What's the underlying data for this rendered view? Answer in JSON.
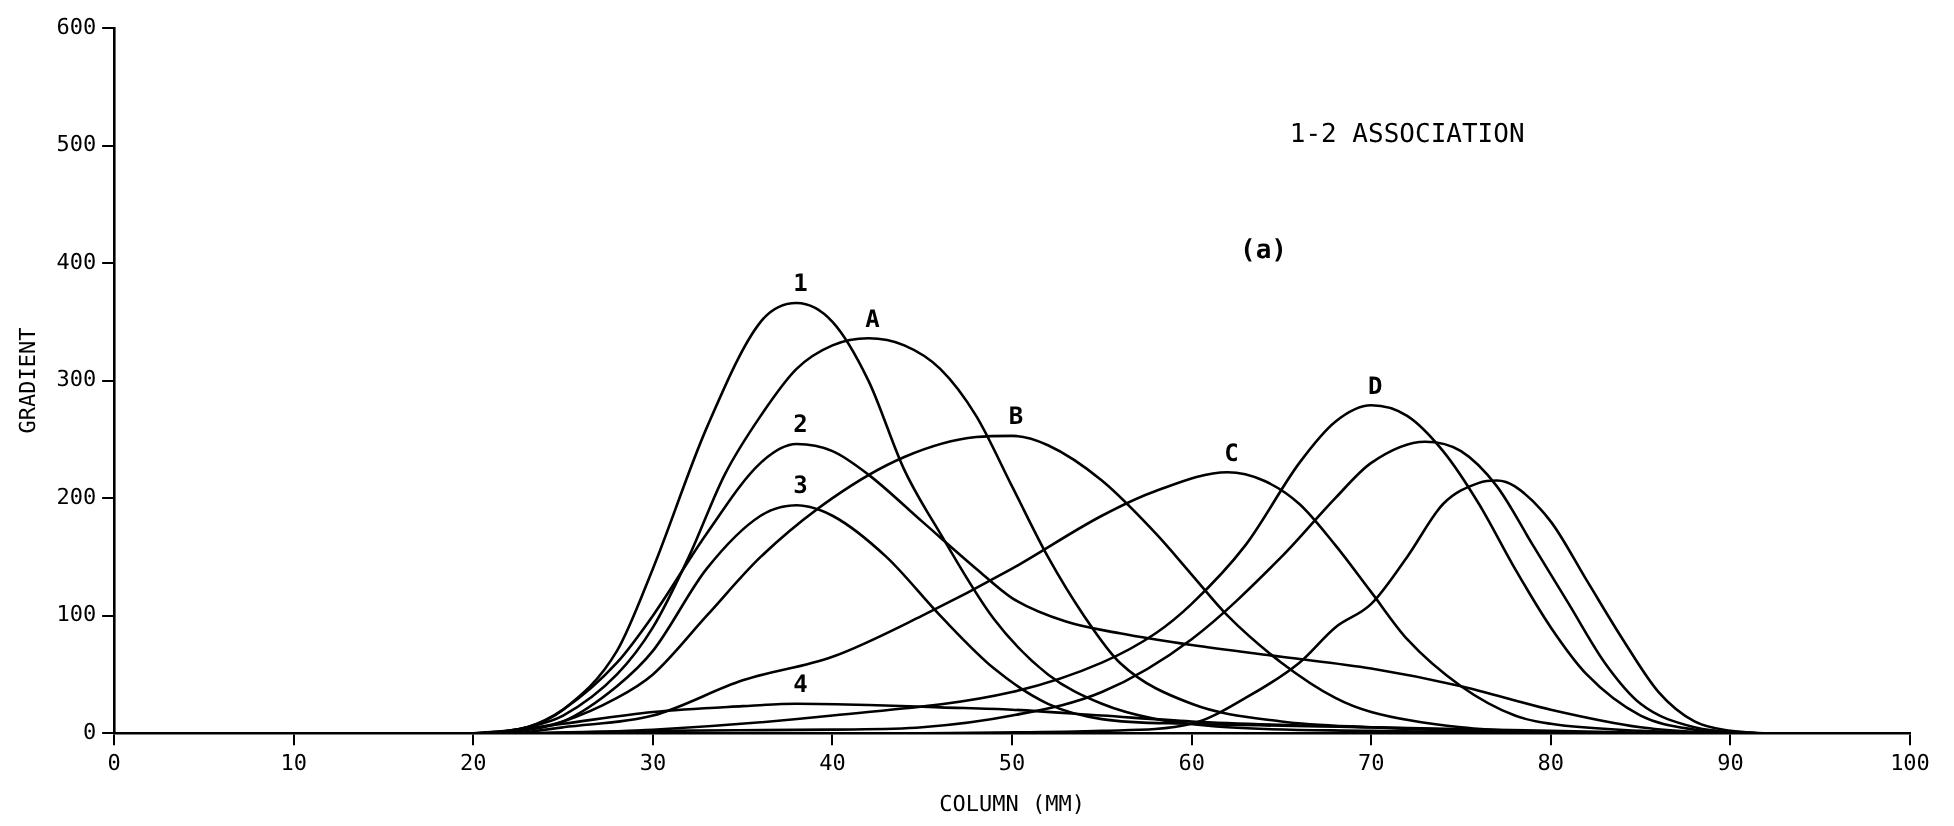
{
  "chart_data": {
    "type": "line",
    "title": "1-2 ASSOCIATION",
    "subtitle": "(a)",
    "xlabel": "COLUMN (MM)",
    "ylabel": "GRADIENT",
    "xlim": [
      0,
      100
    ],
    "xticks": [
      0,
      10,
      20,
      30,
      40,
      50,
      60,
      70,
      80,
      90,
      100
    ],
    "ylim": [
      0,
      600
    ],
    "yticks": [
      0,
      100,
      200,
      300,
      400,
      500,
      600
    ],
    "grid": false,
    "legend": false,
    "marker": "none",
    "line_style": "solid",
    "series": [
      {
        "name": "1",
        "color": "#000000",
        "x": [
          20,
          23,
          25,
          28,
          30,
          33,
          36,
          38,
          40,
          42,
          44,
          46,
          49,
          52,
          55,
          58,
          62,
          70,
          80
        ],
        "values": [
          0,
          5,
          20,
          70,
          140,
          260,
          350,
          366,
          350,
          300,
          224,
          170,
          97,
          50,
          25,
          12,
          5,
          2,
          0
        ]
      },
      {
        "name": "A",
        "color": "#000000",
        "x": [
          21,
          23,
          25,
          28,
          30,
          32,
          34,
          36,
          38,
          40,
          42,
          44,
          46,
          48,
          50,
          52,
          54,
          56,
          60,
          65,
          70,
          79
        ],
        "values": [
          0,
          5,
          15,
          50,
          90,
          150,
          220,
          270,
          310,
          330,
          336,
          330,
          310,
          270,
          210,
          150,
          100,
          60,
          25,
          10,
          5,
          0
        ]
      },
      {
        "name": "2",
        "color": "#000000",
        "x": [
          20.5,
          23,
          25,
          28,
          30,
          33,
          36,
          38,
          40,
          42,
          45,
          48,
          50,
          53,
          56,
          60,
          65,
          70,
          75,
          80,
          85,
          89
        ],
        "values": [
          0,
          5,
          20,
          60,
          100,
          170,
          230,
          246,
          240,
          220,
          180,
          140,
          115,
          95,
          85,
          75,
          65,
          55,
          40,
          20,
          5,
          0
        ]
      },
      {
        "name": "3",
        "color": "#000000",
        "x": [
          21.5,
          25,
          28,
          30,
          33,
          36,
          38,
          40,
          43,
          46,
          49,
          52,
          55,
          60,
          70,
          81
        ],
        "values": [
          0,
          10,
          40,
          70,
          140,
          185,
          194,
          185,
          150,
          100,
          55,
          25,
          12,
          8,
          5,
          0
        ]
      },
      {
        "name": "B",
        "color": "#000000",
        "x": [
          22,
          25,
          28,
          30,
          33,
          36,
          40,
          44,
          48,
          50,
          52,
          55,
          58,
          60,
          62,
          65,
          68,
          70,
          75,
          82
        ],
        "values": [
          0,
          10,
          30,
          50,
          100,
          150,
          200,
          235,
          252,
          253,
          245,
          215,
          170,
          135,
          100,
          60,
          30,
          18,
          5,
          0
        ]
      },
      {
        "name": "C",
        "color": "#000000",
        "x": [
          22.5,
          25,
          30,
          35,
          40,
          45,
          50,
          55,
          58,
          62,
          64,
          66,
          68,
          70,
          72,
          75,
          78,
          80,
          85,
          90.5
        ],
        "values": [
          0,
          5,
          15,
          45,
          65,
          100,
          140,
          185,
          206,
          222,
          215,
          195,
          160,
          120,
          80,
          40,
          15,
          8,
          2,
          0
        ]
      },
      {
        "name": "D",
        "color": "#000000",
        "x": [
          23,
          30,
          40,
          50,
          55,
          58,
          60,
          63,
          66,
          68,
          70,
          72,
          74,
          76,
          78,
          80,
          82,
          85,
          88,
          91
        ],
        "values": [
          0,
          3,
          15,
          35,
          60,
          85,
          110,
          160,
          230,
          265,
          279,
          270,
          240,
          195,
          140,
          90,
          50,
          15,
          3,
          0
        ]
      },
      {
        "name": "4",
        "color": "#000000",
        "x": [
          21,
          25,
          30,
          35,
          38,
          42,
          46,
          50,
          55,
          60,
          70,
          80,
          87
        ],
        "values": [
          0,
          8,
          18,
          23,
          25,
          24,
          22,
          20,
          15,
          10,
          5,
          2,
          0
        ]
      },
      {
        "color": "#000000",
        "x": [
          24,
          30,
          40,
          45,
          50,
          55,
          60,
          65,
          68,
          70,
          73,
          75,
          77,
          79,
          81,
          83,
          85,
          88,
          91.5
        ],
        "values": [
          0,
          2,
          3,
          5,
          15,
          35,
          80,
          150,
          200,
          230,
          248,
          240,
          210,
          160,
          110,
          60,
          25,
          5,
          0
        ]
      },
      {
        "color": "#000000",
        "x": [
          45,
          55,
          60,
          63,
          66,
          68,
          70,
          72,
          74,
          76,
          77,
          78,
          80,
          82,
          84,
          86,
          88,
          90,
          92
        ],
        "values": [
          0,
          2,
          8,
          30,
          60,
          90,
          110,
          150,
          195,
          213,
          215,
          210,
          180,
          130,
          80,
          35,
          10,
          2,
          0
        ]
      }
    ]
  }
}
